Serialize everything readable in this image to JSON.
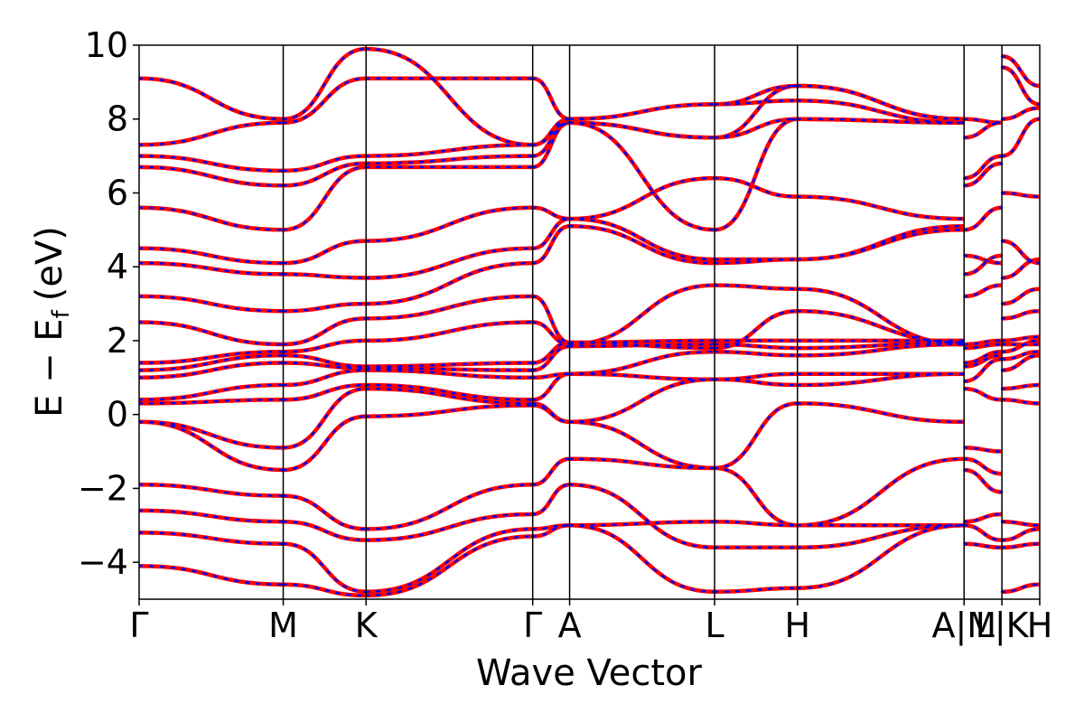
{
  "chart_data": {
    "type": "line",
    "title": "",
    "xlabel": "Wave Vector",
    "ylabel_main": "E − E",
    "ylabel_sub": "f",
    "ylabel_unit": "(eV)",
    "ylim": [
      -5,
      10
    ],
    "yticks": [
      -4,
      -2,
      0,
      2,
      4,
      6,
      8,
      10
    ],
    "ytick_labels": [
      "−4",
      "−2",
      "0",
      "2",
      "4",
      "6",
      "8",
      "10"
    ],
    "x_range": [
      0,
      1
    ],
    "kpoints": [
      {
        "label": "Γ",
        "x": 0.0
      },
      {
        "label": "M",
        "x": 0.16
      },
      {
        "label": "K",
        "x": 0.252
      },
      {
        "label": "Γ",
        "x": 0.437
      },
      {
        "label": "A",
        "x": 0.478
      },
      {
        "label": "L",
        "x": 0.639
      },
      {
        "label": "H",
        "x": 0.731
      },
      {
        "label": "A|M",
        "x": 0.916
      },
      {
        "label": "L|K",
        "x": 0.958
      },
      {
        "label": "H",
        "x": 1.0
      }
    ],
    "series_style": [
      {
        "name": "",
        "color": "#ff0000",
        "dash": "solid"
      },
      {
        "name": "",
        "color": "#0000ff",
        "dash": "dotted"
      }
    ],
    "segments": [
      {
        "x0": 0.0,
        "x1": 0.16,
        "bands": [
          [
            -4.1,
            -4.6
          ],
          [
            -3.2,
            -3.5
          ],
          [
            -2.6,
            -2.9
          ],
          [
            -1.9,
            -2.2
          ],
          [
            -0.2,
            -1.5
          ],
          [
            -0.2,
            -0.9
          ],
          [
            0.3,
            0.4
          ],
          [
            0.4,
            0.8
          ],
          [
            1.0,
            1.4
          ],
          [
            1.2,
            1.6
          ],
          [
            1.4,
            1.7
          ],
          [
            2.5,
            1.9
          ],
          [
            3.2,
            2.8
          ],
          [
            4.1,
            3.8
          ],
          [
            4.5,
            4.1
          ],
          [
            5.6,
            5.0
          ],
          [
            6.7,
            6.2
          ],
          [
            7.0,
            6.6
          ],
          [
            7.3,
            7.9
          ],
          [
            9.1,
            8.0
          ]
        ]
      },
      {
        "x0": 0.16,
        "x1": 0.252,
        "bands": [
          [
            -4.6,
            -4.9
          ],
          [
            -3.5,
            -4.8
          ],
          [
            -2.9,
            -3.4
          ],
          [
            -2.2,
            -3.1
          ],
          [
            -1.5,
            -0.05
          ],
          [
            -0.9,
            0.7
          ],
          [
            0.4,
            0.8
          ],
          [
            0.8,
            1.2
          ],
          [
            1.4,
            1.25
          ],
          [
            1.6,
            1.3
          ],
          [
            1.7,
            2.0
          ],
          [
            1.9,
            2.6
          ],
          [
            2.8,
            3.0
          ],
          [
            3.8,
            3.7
          ],
          [
            4.1,
            4.7
          ],
          [
            5.0,
            6.7
          ],
          [
            6.2,
            6.8
          ],
          [
            6.6,
            7.0
          ],
          [
            7.9,
            9.1
          ],
          [
            8.0,
            9.9
          ]
        ]
      },
      {
        "x0": 0.252,
        "x1": 0.437,
        "bands": [
          [
            -4.9,
            -3.3
          ],
          [
            -4.8,
            -3.1
          ],
          [
            -3.4,
            -2.7
          ],
          [
            -3.1,
            -1.9
          ],
          [
            -0.05,
            0.25
          ],
          [
            0.7,
            0.3
          ],
          [
            0.8,
            0.4
          ],
          [
            1.2,
            1.0
          ],
          [
            1.25,
            1.2
          ],
          [
            1.3,
            1.4
          ],
          [
            2.0,
            2.5
          ],
          [
            2.6,
            3.2
          ],
          [
            3.0,
            4.1
          ],
          [
            3.7,
            4.5
          ],
          [
            4.7,
            5.6
          ],
          [
            6.7,
            6.7
          ],
          [
            6.8,
            7.0
          ],
          [
            7.0,
            7.3
          ],
          [
            9.1,
            9.1
          ],
          [
            9.9,
            7.3
          ]
        ]
      },
      {
        "x0": 0.437,
        "x1": 0.478,
        "bands": [
          [
            -3.3,
            -3.0
          ],
          [
            -3.1,
            -3.0
          ],
          [
            -2.7,
            -1.9
          ],
          [
            -1.9,
            -1.2
          ],
          [
            0.25,
            -0.2
          ],
          [
            0.3,
            -0.2
          ],
          [
            0.4,
            1.1
          ],
          [
            1.0,
            1.1
          ],
          [
            1.2,
            1.85
          ],
          [
            1.4,
            1.95
          ],
          [
            2.5,
            1.9
          ],
          [
            3.2,
            1.95
          ],
          [
            4.1,
            5.1
          ],
          [
            4.5,
            5.3
          ],
          [
            5.6,
            5.3
          ],
          [
            6.7,
            7.9
          ],
          [
            7.0,
            7.9
          ],
          [
            7.3,
            8.0
          ],
          [
            9.1,
            8.0
          ],
          [
            7.3,
            7.9
          ]
        ]
      },
      {
        "x0": 0.478,
        "x1": 0.639,
        "bands": [
          [
            -3.0,
            -4.8
          ],
          [
            -3.0,
            -2.9
          ],
          [
            -1.9,
            -3.6
          ],
          [
            -1.2,
            -1.45
          ],
          [
            -0.2,
            -1.45
          ],
          [
            -0.2,
            0.95
          ],
          [
            1.1,
            0.95
          ],
          [
            1.1,
            1.7
          ],
          [
            1.85,
            1.9
          ],
          [
            1.95,
            2.0
          ],
          [
            1.9,
            3.5
          ],
          [
            1.95,
            1.8
          ],
          [
            5.1,
            4.1
          ],
          [
            5.3,
            4.2
          ],
          [
            5.3,
            6.4
          ],
          [
            7.9,
            5.0
          ],
          [
            7.9,
            7.5
          ],
          [
            8.0,
            8.4
          ],
          [
            8.0,
            8.4
          ],
          [
            7.9,
            7.5
          ]
        ]
      },
      {
        "x0": 0.639,
        "x1": 0.731,
        "bands": [
          [
            -4.8,
            -4.7
          ],
          [
            -2.9,
            -3.0
          ],
          [
            -3.6,
            -3.6
          ],
          [
            -1.45,
            -3.0
          ],
          [
            -1.45,
            0.3
          ],
          [
            0.95,
            0.8
          ],
          [
            0.95,
            1.1
          ],
          [
            1.7,
            1.6
          ],
          [
            1.9,
            1.8
          ],
          [
            2.0,
            2.0
          ],
          [
            3.5,
            3.4
          ],
          [
            1.8,
            2.8
          ],
          [
            4.1,
            4.2
          ],
          [
            4.2,
            4.2
          ],
          [
            6.4,
            5.9
          ],
          [
            5.0,
            8.0
          ],
          [
            7.5,
            8.9
          ],
          [
            8.4,
            8.5
          ],
          [
            8.4,
            8.9
          ],
          [
            7.5,
            8.0
          ]
        ]
      },
      {
        "x0": 0.731,
        "x1": 0.916,
        "bands": [
          [
            -4.7,
            -3.0
          ],
          [
            -3.0,
            -3.0
          ],
          [
            -3.6,
            -3.0
          ],
          [
            -3.0,
            -1.2
          ],
          [
            0.3,
            -0.2
          ],
          [
            0.8,
            1.1
          ],
          [
            1.1,
            1.1
          ],
          [
            1.6,
            1.9
          ],
          [
            1.8,
            1.95
          ],
          [
            2.0,
            2.0
          ],
          [
            3.4,
            1.9
          ],
          [
            2.8,
            1.95
          ],
          [
            4.2,
            5.1
          ],
          [
            4.2,
            5.0
          ],
          [
            5.9,
            5.3
          ],
          [
            8.0,
            7.9
          ],
          [
            8.9,
            8.0
          ],
          [
            8.5,
            7.9
          ],
          [
            8.9,
            8.0
          ],
          [
            8.0,
            7.9
          ]
        ]
      },
      {
        "x0": 0.916,
        "x1": 0.958,
        "bands": [
          [
            -3.0,
            -3.4
          ],
          [
            -3.5,
            -3.6
          ],
          [
            -2.9,
            -2.7
          ],
          [
            -1.2,
            -1.6
          ],
          [
            -1.5,
            -2.1
          ],
          [
            -0.9,
            -1.0
          ],
          [
            0.7,
            0.4
          ],
          [
            0.9,
            1.5
          ],
          [
            1.3,
            1.6
          ],
          [
            1.4,
            1.7
          ],
          [
            1.8,
            1.9
          ],
          [
            1.9,
            2.0
          ],
          [
            3.2,
            3.5
          ],
          [
            3.8,
            4.3
          ],
          [
            4.3,
            4.1
          ],
          [
            5.0,
            5.6
          ],
          [
            6.2,
            6.8
          ],
          [
            6.4,
            7.0
          ],
          [
            7.5,
            7.9
          ],
          [
            8.0,
            7.9
          ]
        ]
      },
      {
        "x0": 0.958,
        "x1": 1.0,
        "bands": [
          [
            -4.8,
            -4.6
          ],
          [
            -3.4,
            -3.1
          ],
          [
            -3.6,
            -3.5
          ],
          [
            -2.9,
            -3.0
          ],
          [
            0.4,
            0.3
          ],
          [
            0.7,
            0.8
          ],
          [
            1.2,
            1.6
          ],
          [
            1.5,
            1.7
          ],
          [
            1.7,
            2.0
          ],
          [
            1.9,
            1.9
          ],
          [
            2.0,
            2.1
          ],
          [
            2.6,
            2.8
          ],
          [
            3.0,
            3.4
          ],
          [
            3.7,
            4.2
          ],
          [
            4.7,
            4.1
          ],
          [
            6.0,
            5.9
          ],
          [
            7.0,
            8.0
          ],
          [
            8.0,
            8.3
          ],
          [
            9.7,
            8.9
          ],
          [
            9.4,
            8.4
          ]
        ]
      }
    ]
  }
}
